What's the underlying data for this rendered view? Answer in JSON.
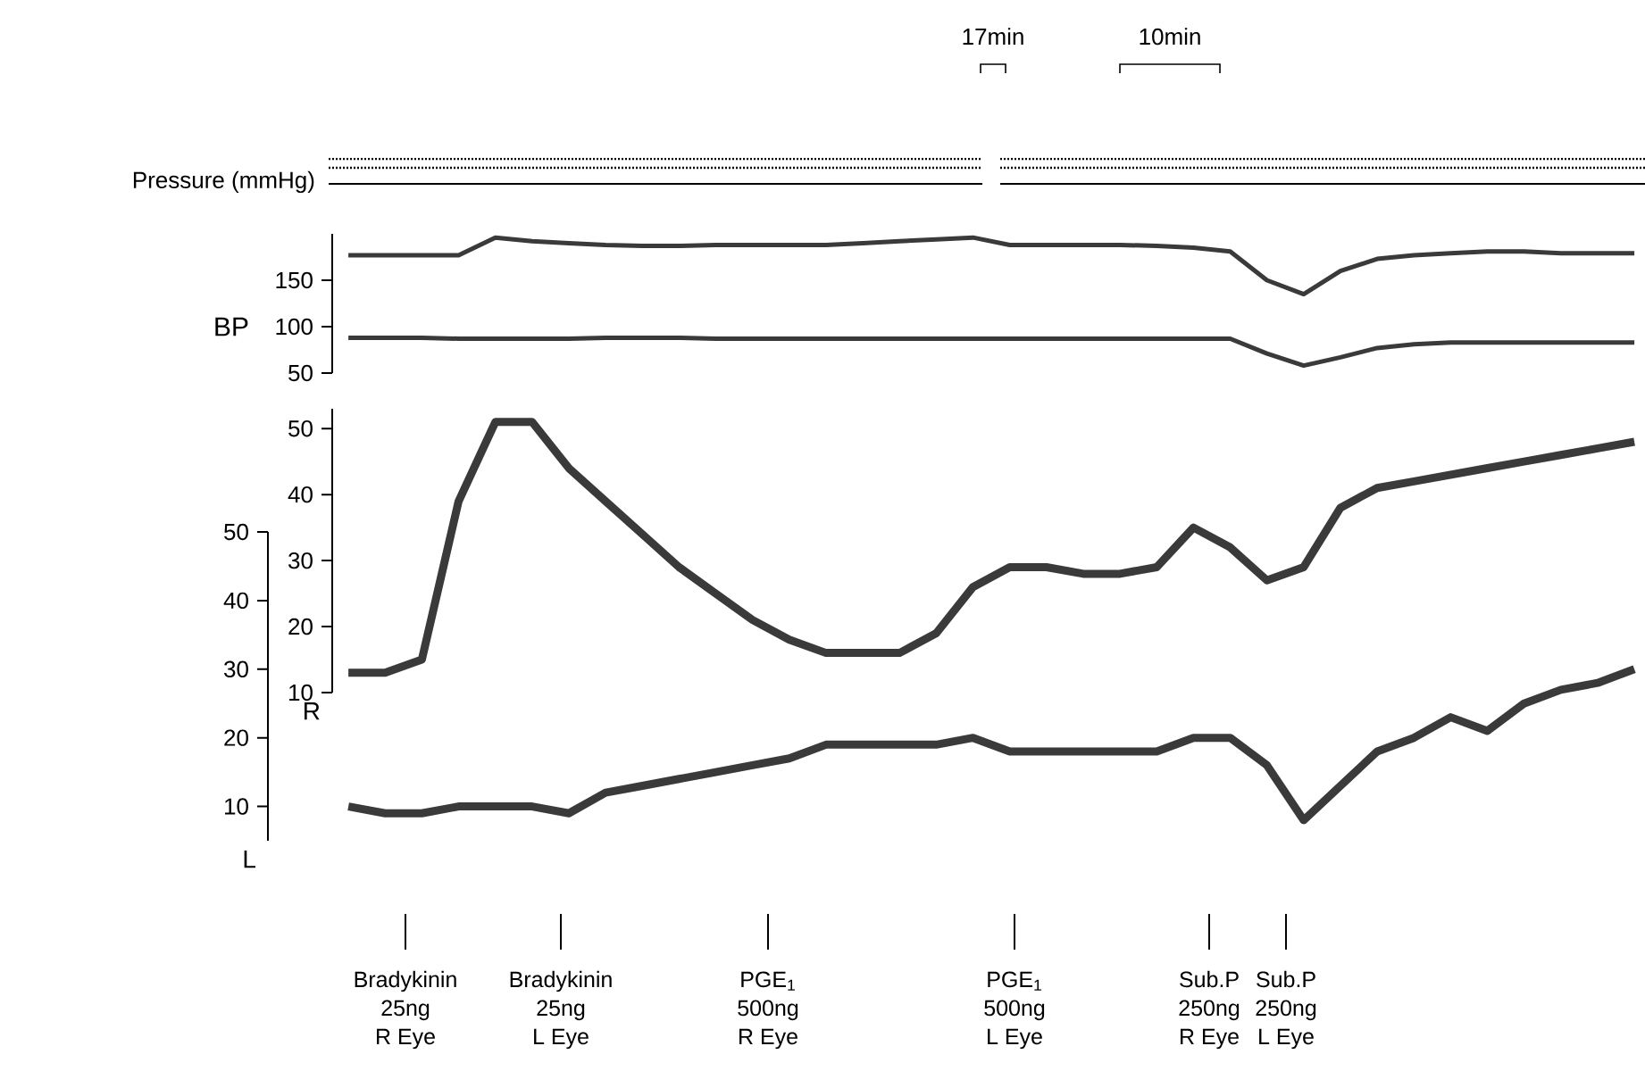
{
  "chart_data": [
    {
      "type": "line",
      "ylabel": "BP",
      "categories": [
        null,
        null,
        null,
        null,
        null,
        null,
        null,
        null,
        null,
        null,
        null,
        null,
        null,
        null,
        null,
        null,
        null,
        null,
        null,
        null,
        null,
        null,
        null,
        null,
        null,
        null,
        null,
        null,
        null,
        null,
        null,
        null,
        null,
        null,
        null,
        null
      ],
      "ylim": [
        50,
        200
      ],
      "yticks": [
        50,
        100,
        150
      ],
      "tick_labels": "y",
      "series": [
        {
          "color": "#3a3a3a",
          "values": [
            177,
            177,
            177,
            177,
            196,
            192,
            190,
            188,
            187,
            187,
            188,
            188,
            188,
            188,
            190,
            192,
            194,
            196,
            188,
            188,
            188,
            188,
            187,
            185,
            181,
            150,
            135,
            160,
            173,
            177,
            179,
            181,
            181,
            179,
            179,
            179
          ]
        },
        {
          "color": "#3a3a3a",
          "values": [
            88,
            88,
            88,
            87,
            87,
            87,
            87,
            88,
            88,
            88,
            87,
            87,
            87,
            87,
            87,
            87,
            87,
            87,
            87,
            87,
            87,
            87,
            87,
            87,
            87,
            71,
            58,
            67,
            77,
            81,
            83,
            83,
            83,
            83,
            83,
            83
          ]
        }
      ],
      "annotations": [
        "Pressure (mmHg)",
        "17min",
        "10min"
      ]
    },
    {
      "type": "line",
      "ylabel": "R",
      "categories": [
        null,
        null,
        null,
        null,
        null,
        null,
        null,
        null,
        null,
        null,
        null,
        null,
        null,
        null,
        null,
        null,
        null,
        null,
        null,
        null,
        null,
        null,
        null,
        null,
        null,
        null,
        null,
        null,
        null,
        null,
        null,
        null,
        null,
        null,
        null,
        null
      ],
      "ylim": [
        10,
        53
      ],
      "yticks": [
        10,
        20,
        30,
        40,
        50
      ],
      "tick_labels": "y",
      "series": [
        {
          "color": "#3a3a3a",
          "values": [
            13,
            13,
            15,
            39,
            51,
            51,
            44,
            39,
            34,
            29,
            25,
            21,
            18,
            16,
            16,
            16,
            19,
            26,
            29,
            29,
            28,
            28,
            29,
            35,
            32,
            27,
            29,
            38,
            41,
            42,
            43,
            44,
            45,
            46,
            47,
            48
          ]
        }
      ]
    },
    {
      "type": "line",
      "ylabel": "L",
      "categories": [
        null,
        null,
        null,
        null,
        null,
        null,
        null,
        null,
        null,
        null,
        null,
        null,
        null,
        null,
        null,
        null,
        null,
        null,
        null,
        null,
        null,
        null,
        null,
        null,
        null,
        null,
        null,
        null,
        null,
        null,
        null,
        null,
        null,
        null,
        null,
        null
      ],
      "ylim": [
        5,
        50
      ],
      "yticks": [
        10,
        20,
        30,
        40,
        50
      ],
      "tick_labels": "y",
      "series": [
        {
          "color": "#3a3a3a",
          "values": [
            10,
            9,
            9,
            10,
            10,
            10,
            9,
            12,
            13,
            14,
            15,
            16,
            17,
            19,
            19,
            19,
            19,
            20,
            18,
            18,
            18,
            18,
            18,
            20,
            20,
            16,
            8,
            13,
            18,
            20,
            23,
            21,
            25,
            27,
            28,
            30
          ]
        }
      ],
      "annotations": [
        "Bradykinin",
        "25ng",
        "R Eye",
        "Bradykinin",
        "25ng",
        "L Eye",
        "PGE$_{1}$",
        "500ng",
        "R Eye",
        "PGE$_{1}$",
        "500ng",
        "L Eye",
        "Sub.P",
        "250ng",
        "R Eye",
        "Sub.P",
        "250ng",
        "L Eye"
      ]
    }
  ]
}
